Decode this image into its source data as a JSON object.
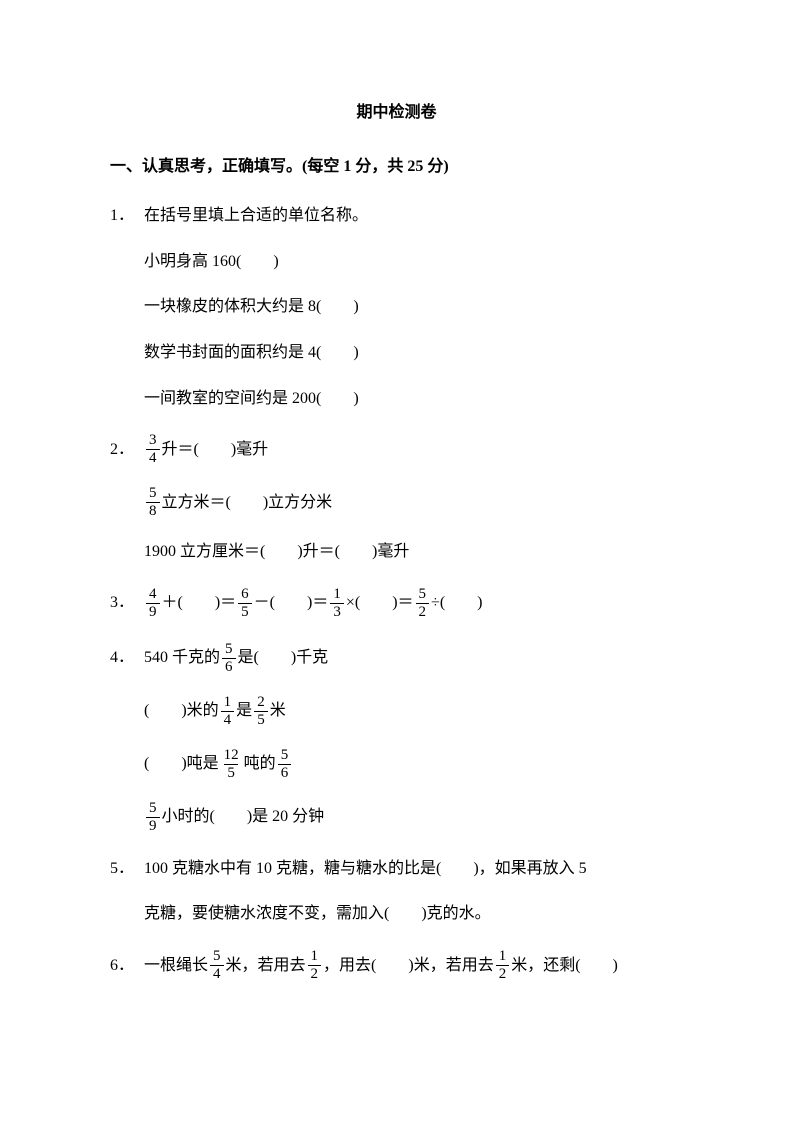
{
  "title": "期中检测卷",
  "section1": {
    "header": "一、认真思考，正确填写。(每空 1 分，共 25 分)",
    "q1": {
      "num": "1．",
      "main": "在括号里填上合适的单位名称。",
      "line1": "小明身高 160(　　)",
      "line2": "一块橡皮的体积大约是 8(　　)",
      "line3": "数学书封面的面积约是 4(　　)",
      "line4": "一间教室的空间约是 200(　　)"
    },
    "q2": {
      "num": "2．",
      "f1n": "3",
      "f1d": "4",
      "t1": "升＝(　　)毫升",
      "f2n": "5",
      "f2d": "8",
      "t2": "立方米＝(　　)立方分米",
      "t3": "1900 立方厘米＝(　　)升＝(　　)毫升"
    },
    "q3": {
      "num": "3．",
      "f1n": "4",
      "f1d": "9",
      "t1": "＋(　　)＝",
      "f2n": "6",
      "f2d": "5",
      "t2": "－(　　)＝",
      "f3n": "1",
      "f3d": "3",
      "t3": "×(　　)＝",
      "f4n": "5",
      "f4d": "2",
      "t4": "÷(　　)"
    },
    "q4": {
      "num": "4．",
      "t1a": "540 千克的",
      "f1n": "5",
      "f1d": "6",
      "t1b": "是(　　)千克",
      "t2a": "(　　)米的",
      "f2n": "1",
      "f2d": "4",
      "t2b": "是",
      "f2cn": "2",
      "f2cd": "5",
      "t2c": "米",
      "t3a": "(　　)吨是",
      "f3n": "12",
      "f3d": "5",
      "t3b": "吨的",
      "f3cn": "5",
      "f3cd": "6",
      "f4n": "5",
      "f4d": "9",
      "t4a": "小时的(　　)是 20 分钟"
    },
    "q5": {
      "num": "5．",
      "line1": "100 克糖水中有 10 克糖，糖与糖水的比是(　　)，如果再放入 5",
      "line2": "克糖，要使糖水浓度不变，需加入(　　)克的水。"
    },
    "q6": {
      "num": "6．",
      "t1": "一根绳长",
      "f1n": "5",
      "f1d": "4",
      "t2": "米，若用去",
      "f2n": "1",
      "f2d": "2",
      "t3": "，用去(　　)米，若用去",
      "f3n": "1",
      "f3d": "2",
      "t4": "米，还剩(　　)"
    }
  }
}
